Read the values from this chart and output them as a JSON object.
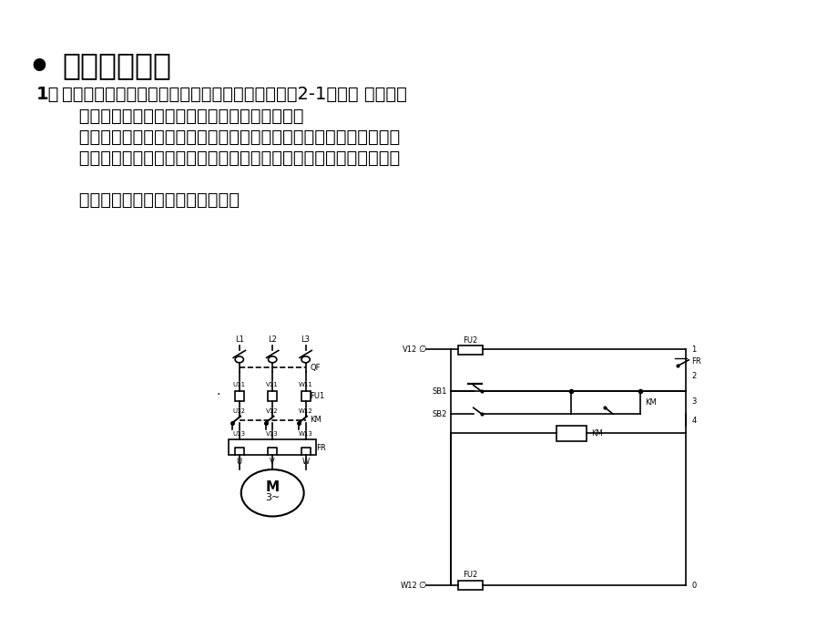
{
  "bg_color": "#ffffff",
  "title_text": "四、实训指导",
  "title_bullet": "•",
  "title_fontsize": 24,
  "body_fontsize": 14,
  "body_lines": [
    [
      "bold",
      "1．",
      "识读三相笼型异步电动机单向起动控制线路，如图2-1所示， 明确线路"
    ],
    [
      "normal",
      "   中所用电器元件及作用，熟悉线路的工作原理。"
    ],
    [
      "normal",
      "   熟悉起动按鈕和停止按鈕的结构特点和动作原理；理解接触器自锁触"
    ],
    [
      "normal",
      "   点的作用及接触器自锁的欠压、失压保护功能；领会热继电器过载保"
    ],
    [
      "normal",
      ""
    ],
    [
      "normal",
      "   护的原理和热继电器的接线要求。"
    ]
  ],
  "lw": 1.2,
  "fs_label": 7,
  "fs_small": 6
}
